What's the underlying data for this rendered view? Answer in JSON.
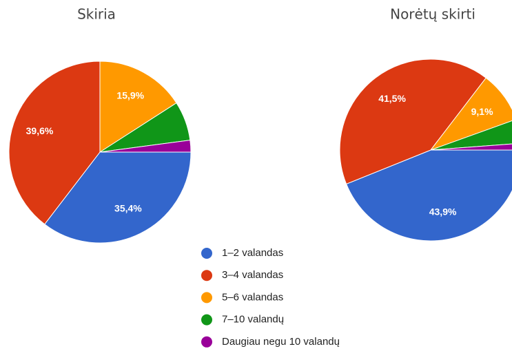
{
  "legend": {
    "labels": [
      "1–2 valandas",
      "3–4 valandas",
      "5–6 valandas",
      "7–10 valandų",
      "Daugiau negu 10 valandų"
    ],
    "colors": [
      "#3366cc",
      "#dc3912",
      "#ff9900",
      "#109618",
      "#990099"
    ]
  },
  "chart_data": [
    {
      "type": "pie",
      "title": "Skiria",
      "values": [
        35.4,
        39.6,
        15.9,
        7.0,
        2.1
      ],
      "value_labels": [
        "35,4%",
        "39,6%",
        "15,9%",
        null,
        null
      ]
    },
    {
      "type": "pie",
      "title": "Norėtų skirti",
      "values": [
        43.9,
        41.5,
        9.1,
        4.3,
        1.2
      ],
      "value_labels": [
        "43,9%",
        "41,5%",
        "9,1%",
        null,
        null
      ]
    }
  ]
}
